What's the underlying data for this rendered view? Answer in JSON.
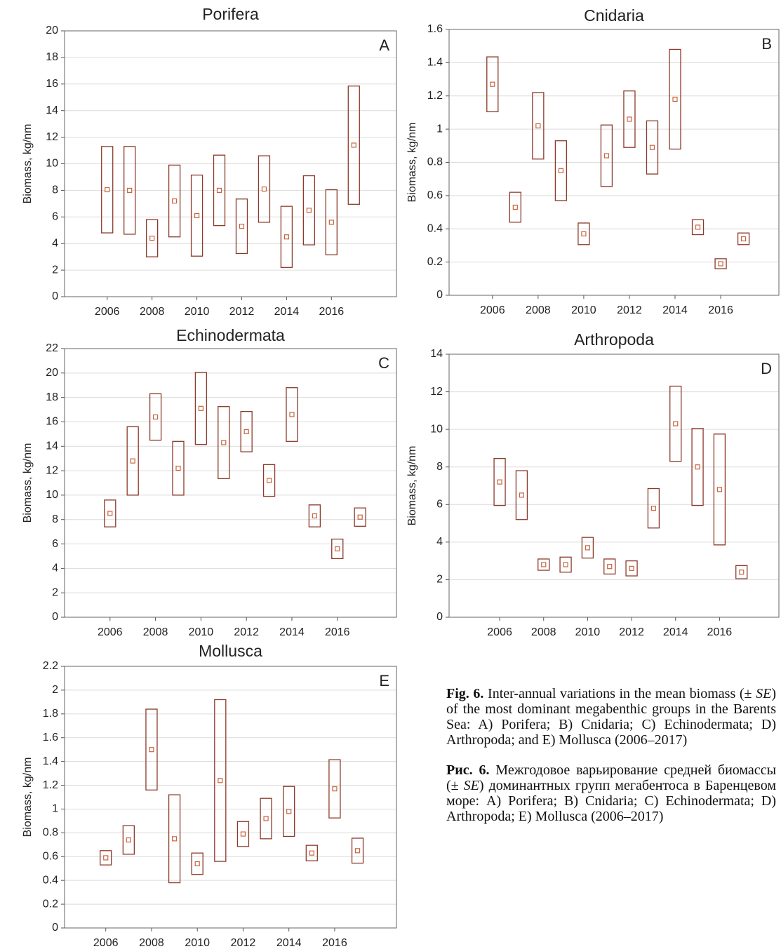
{
  "chart_data": [
    {
      "type": "box",
      "title": "Porifera",
      "panel_label": "A",
      "y_label": "Biomass, kg/nm",
      "color": "#8b3a2a",
      "marker_color": "#c8643f",
      "grid": true,
      "x": [
        2006,
        2007,
        2008,
        2009,
        2010,
        2011,
        2012,
        2013,
        2014,
        2015,
        2016,
        2017
      ],
      "values": [
        8.05,
        8.0,
        4.4,
        7.2,
        6.1,
        8.0,
        5.3,
        8.1,
        4.5,
        6.5,
        5.6,
        11.4
      ],
      "errors": [
        3.25,
        3.3,
        1.4,
        2.7,
        3.05,
        2.65,
        2.05,
        2.5,
        2.3,
        2.6,
        2.45,
        4.45
      ],
      "xlim": [
        2004.1,
        2018.9
      ],
      "xticks": [
        2006,
        2008,
        2010,
        2012,
        2014,
        2016
      ],
      "ylim": [
        0,
        20
      ],
      "yticks": [
        0,
        2,
        4,
        6,
        8,
        10,
        12,
        14,
        16,
        18,
        20
      ]
    },
    {
      "type": "box",
      "title": "Cnidaria",
      "panel_label": "B",
      "y_label": "Biomass, kg/nm",
      "color": "#8b3a2a",
      "marker_color": "#c8643f",
      "grid": true,
      "x": [
        2006,
        2007,
        2008,
        2009,
        2010,
        2011,
        2012,
        2013,
        2014,
        2015,
        2016,
        2017
      ],
      "values": [
        1.27,
        0.53,
        1.02,
        0.75,
        0.37,
        0.84,
        1.06,
        0.89,
        1.18,
        0.41,
        0.19,
        0.34
      ],
      "errors": [
        0.165,
        0.09,
        0.2,
        0.18,
        0.065,
        0.185,
        0.17,
        0.16,
        0.3,
        0.045,
        0.03,
        0.035
      ],
      "xlim": [
        2004.1,
        2018.55
      ],
      "xticks": [
        2006,
        2008,
        2010,
        2012,
        2014,
        2016
      ],
      "ylim": [
        0,
        1.6
      ],
      "yticks": [
        0,
        0.2,
        0.4,
        0.6,
        0.8,
        1,
        1.2,
        1.4,
        1.6
      ]
    },
    {
      "type": "box",
      "title": "Echinodermata",
      "panel_label": "C",
      "y_label": "Biomass, kg/nm",
      "color": "#8b3a2a",
      "marker_color": "#c8643f",
      "grid": true,
      "x": [
        2006,
        2007,
        2008,
        2009,
        2010,
        2011,
        2012,
        2013,
        2014,
        2015,
        2016,
        2017
      ],
      "values": [
        8.5,
        12.8,
        16.4,
        12.2,
        17.1,
        14.3,
        15.2,
        11.2,
        16.6,
        8.3,
        5.6,
        8.2
      ],
      "errors": [
        1.1,
        2.8,
        1.9,
        2.2,
        2.95,
        2.95,
        1.65,
        1.3,
        2.2,
        0.9,
        0.8,
        0.75
      ],
      "xlim": [
        2004.0,
        2018.6
      ],
      "xticks": [
        2006,
        2008,
        2010,
        2012,
        2014,
        2016
      ],
      "ylim": [
        0,
        22
      ],
      "yticks": [
        0,
        2,
        4,
        6,
        8,
        10,
        12,
        14,
        16,
        18,
        20,
        22
      ]
    },
    {
      "type": "box",
      "title": "Arthropoda",
      "panel_label": "D",
      "y_label": "Biomass, kg/nm",
      "color": "#8b3a2a",
      "marker_color": "#c8643f",
      "grid": true,
      "x": [
        2006,
        2007,
        2008,
        2009,
        2010,
        2011,
        2012,
        2013,
        2014,
        2015,
        2016,
        2017
      ],
      "values": [
        7.2,
        6.5,
        2.8,
        2.8,
        3.7,
        2.7,
        2.6,
        5.8,
        10.3,
        8.0,
        6.8,
        2.4
      ],
      "errors": [
        1.25,
        1.3,
        0.3,
        0.4,
        0.55,
        0.4,
        0.4,
        1.05,
        2.0,
        2.05,
        2.95,
        0.35
      ],
      "xlim": [
        2003.7,
        2018.7
      ],
      "xticks": [
        2006,
        2008,
        2010,
        2012,
        2014,
        2016
      ],
      "ylim": [
        0,
        14
      ],
      "yticks": [
        0,
        2,
        4,
        6,
        8,
        10,
        12,
        14
      ]
    },
    {
      "type": "box",
      "title": "Mollusca",
      "panel_label": "E",
      "y_label": "Biomass, kg/nm",
      "color": "#8b3a2a",
      "marker_color": "#c8643f",
      "grid": true,
      "x": [
        2006,
        2007,
        2008,
        2009,
        2010,
        2011,
        2012,
        2013,
        2014,
        2015,
        2016,
        2017
      ],
      "values": [
        0.59,
        0.74,
        1.5,
        0.75,
        0.54,
        1.24,
        0.79,
        0.92,
        0.98,
        0.63,
        1.17,
        0.65
      ],
      "errors": [
        0.06,
        0.12,
        0.34,
        0.37,
        0.09,
        0.68,
        0.105,
        0.17,
        0.21,
        0.065,
        0.245,
        0.105
      ],
      "xlim": [
        2004.2,
        2018.7
      ],
      "xticks": [
        2006,
        2008,
        2010,
        2012,
        2014,
        2016
      ],
      "ylim": [
        0,
        2.2
      ],
      "yticks": [
        0,
        0.2,
        0.4,
        0.6,
        0.8,
        1,
        1.2,
        1.4,
        1.6,
        1.8,
        2,
        2.2
      ]
    }
  ],
  "caption_en": {
    "label": "Fig. 6.",
    "parts": [
      "Inter-annual variations in the mean biomass (± ",
      "SE",
      ") of the most dominant megabenthic groups in the Barents Sea: A) Porifera; B) Cnidaria; C) Echinodermata; D) Arthropoda; and E) Mollusca (2006–2017)"
    ]
  },
  "caption_ru": {
    "label": "Рис. 6.",
    "parts": [
      "Межгодовое варьирование средней биомассы (± ",
      "SE",
      ") доминантных групп мегабентоса в Баренцевом море: A) Porifera; B) Cnidaria; C) Echinodermata; D) Arthropoda; E) Mollusca (2006–2017)"
    ]
  }
}
